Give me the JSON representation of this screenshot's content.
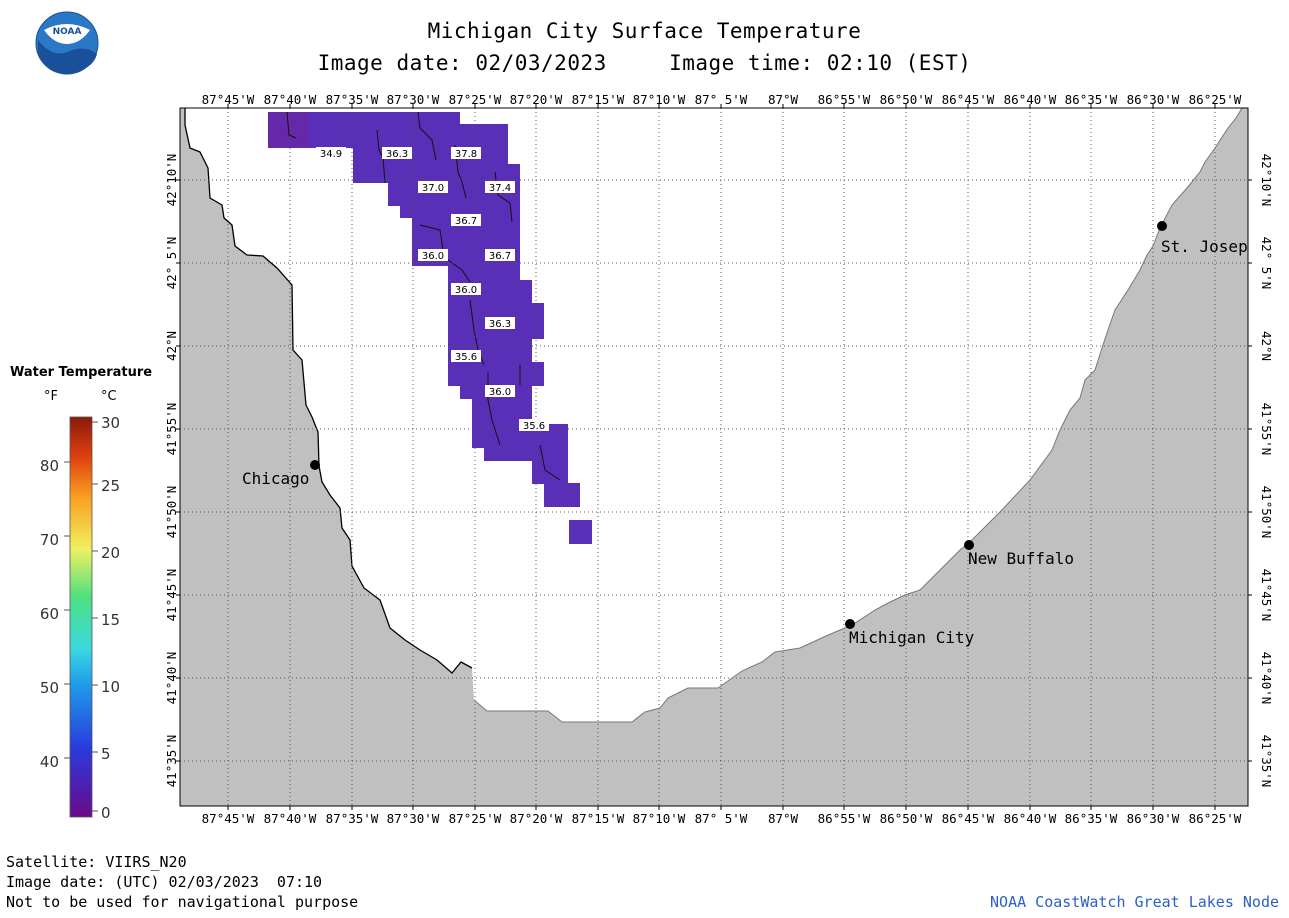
{
  "header": {
    "title": "Michigan City Surface Temperature",
    "image_date": "Image date: 02/03/2023",
    "image_time": "Image time: 02:10 (EST)"
  },
  "logo": {
    "text": "NOAA"
  },
  "legend": {
    "title": "Water Temperature",
    "unit_f": "°F",
    "unit_c": "°C",
    "f_ticks": [
      "40",
      "50",
      "60",
      "70",
      "80"
    ],
    "c_ticks": [
      "0",
      "5",
      "10",
      "15",
      "20",
      "25",
      "30"
    ]
  },
  "axes": {
    "lon_labels": [
      "87°45'W",
      "87°40'W",
      "87°35'W",
      "87°30'W",
      "87°25'W",
      "87°20'W",
      "87°15'W",
      "87°10'W",
      "87° 5'W",
      "87°W",
      "86°55'W",
      "86°50'W",
      "86°45'W",
      "86°40'W",
      "86°35'W",
      "86°30'W",
      "86°25'W"
    ],
    "lat_labels": [
      "42°10'N",
      "42° 5'N",
      "42°N",
      "41°55'N",
      "41°50'N",
      "41°45'N",
      "41°40'N",
      "41°35'N"
    ]
  },
  "cities": [
    {
      "name": "Chicago"
    },
    {
      "name": "St. Josep"
    },
    {
      "name": "New Buffalo"
    },
    {
      "name": "Michigan City"
    }
  ],
  "temperature_labels": [
    "34.9",
    "36.3",
    "37.8",
    "37.0",
    "37.4",
    "36.7",
    "36.0",
    "36.7",
    "36.0",
    "36.3",
    "35.6",
    "36.0",
    "35.6"
  ],
  "footer": {
    "satellite": "Satellite: VIIRS_N20",
    "utc_date": "Image date: (UTC) 02/03/2023  07:10",
    "disclaimer": "Not to be used for navigational purpose",
    "node": "NOAA CoastWatch Great Lakes Node"
  },
  "colors": {
    "land": "#c0c0c0",
    "water": "#ffffff",
    "sst_purple": "#5a2fb8",
    "node_text": "#2a60c8"
  }
}
